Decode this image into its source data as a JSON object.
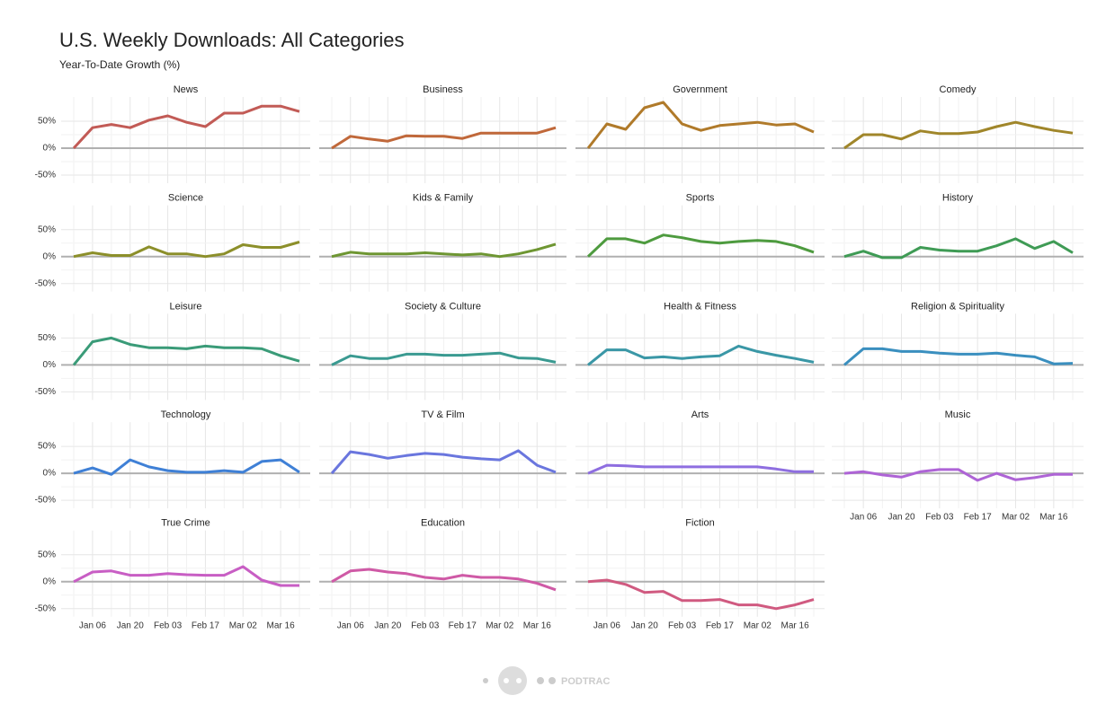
{
  "chart_data": {
    "type": "line",
    "facets": true,
    "title": "U.S. Weekly Downloads: All Categories",
    "subtitle": "Year-To-Date Growth (%)",
    "categories": [
      null,
      "Jan 06",
      null,
      "Jan 20",
      null,
      "Feb 03",
      null,
      "Feb 17",
      null,
      "Mar 02",
      null,
      "Mar 16",
      null
    ],
    "ylim": [
      -65,
      95
    ],
    "yticks": [
      {
        "value": -50,
        "label": "-50%"
      },
      {
        "value": 0,
        "label": "0%"
      },
      {
        "value": 50,
        "label": "50%"
      }
    ],
    "grid": true,
    "series": [
      {
        "name": "News",
        "color": "#c25b56",
        "values": [
          0,
          38,
          44,
          38,
          52,
          60,
          48,
          40,
          65,
          65,
          78,
          78,
          68
        ]
      },
      {
        "name": "Business",
        "color": "#c0683a",
        "values": [
          0,
          22,
          17,
          13,
          23,
          22,
          22,
          18,
          28,
          28,
          28,
          28,
          38
        ]
      },
      {
        "name": "Government",
        "color": "#b07a2a",
        "values": [
          0,
          45,
          35,
          75,
          85,
          45,
          33,
          42,
          45,
          48,
          43,
          45,
          30
        ]
      },
      {
        "name": "Comedy",
        "color": "#a0862a",
        "values": [
          0,
          25,
          25,
          17,
          32,
          27,
          27,
          30,
          40,
          48,
          40,
          33,
          28
        ]
      },
      {
        "name": "Science",
        "color": "#8c8f2a",
        "values": [
          0,
          7,
          2,
          2,
          18,
          5,
          5,
          0,
          5,
          22,
          17,
          17,
          27
        ]
      },
      {
        "name": "Kids & Family",
        "color": "#6e9632",
        "values": [
          0,
          8,
          5,
          5,
          5,
          7,
          5,
          3,
          5,
          0,
          5,
          13,
          23
        ]
      },
      {
        "name": "Sports",
        "color": "#4e9b3f",
        "values": [
          0,
          33,
          33,
          25,
          40,
          35,
          28,
          25,
          28,
          30,
          28,
          20,
          8
        ]
      },
      {
        "name": "History",
        "color": "#3f9b55",
        "values": [
          0,
          10,
          -2,
          -2,
          17,
          12,
          10,
          10,
          20,
          33,
          15,
          28,
          7
        ]
      },
      {
        "name": "Leisure",
        "color": "#3a9b78",
        "values": [
          0,
          43,
          50,
          38,
          32,
          32,
          30,
          35,
          32,
          32,
          30,
          17,
          7
        ]
      },
      {
        "name": "Society & Culture",
        "color": "#3a9a91",
        "values": [
          0,
          17,
          12,
          12,
          20,
          20,
          18,
          18,
          20,
          22,
          13,
          12,
          5
        ]
      },
      {
        "name": "Health & Fitness",
        "color": "#3a97a6",
        "values": [
          0,
          28,
          28,
          13,
          15,
          12,
          15,
          17,
          35,
          25,
          18,
          12,
          5
        ]
      },
      {
        "name": "Religion & Spirituality",
        "color": "#3a8fbf",
        "values": [
          0,
          30,
          30,
          25,
          25,
          22,
          20,
          20,
          22,
          18,
          15,
          2,
          3
        ]
      },
      {
        "name": "Technology",
        "color": "#3f80d6",
        "values": [
          0,
          10,
          -2,
          25,
          12,
          5,
          2,
          2,
          5,
          2,
          22,
          25,
          2
        ]
      },
      {
        "name": "TV & Film",
        "color": "#6a76de",
        "values": [
          0,
          40,
          35,
          28,
          33,
          37,
          35,
          30,
          27,
          25,
          42,
          15,
          2
        ]
      },
      {
        "name": "Arts",
        "color": "#8e6ee0",
        "values": [
          0,
          15,
          14,
          12,
          12,
          12,
          12,
          12,
          12,
          12,
          8,
          3,
          3
        ]
      },
      {
        "name": "Music",
        "color": "#ae64d6",
        "values": [
          0,
          3,
          -3,
          -7,
          3,
          7,
          7,
          -13,
          0,
          -12,
          -8,
          -2,
          -2
        ]
      },
      {
        "name": "True Crime",
        "color": "#c85ec4",
        "values": [
          0,
          18,
          20,
          12,
          12,
          15,
          13,
          12,
          12,
          28,
          3,
          -7,
          -7
        ]
      },
      {
        "name": "Education",
        "color": "#cf5aa6",
        "values": [
          0,
          20,
          23,
          18,
          15,
          8,
          5,
          12,
          8,
          8,
          5,
          -3,
          -15
        ]
      },
      {
        "name": "Fiction",
        "color": "#d05a80",
        "values": [
          0,
          3,
          -5,
          -20,
          -18,
          -35,
          -35,
          -33,
          -43,
          -43,
          -50,
          -43,
          -33
        ]
      }
    ]
  },
  "footer": {
    "logo_text": "PODTRAC"
  }
}
